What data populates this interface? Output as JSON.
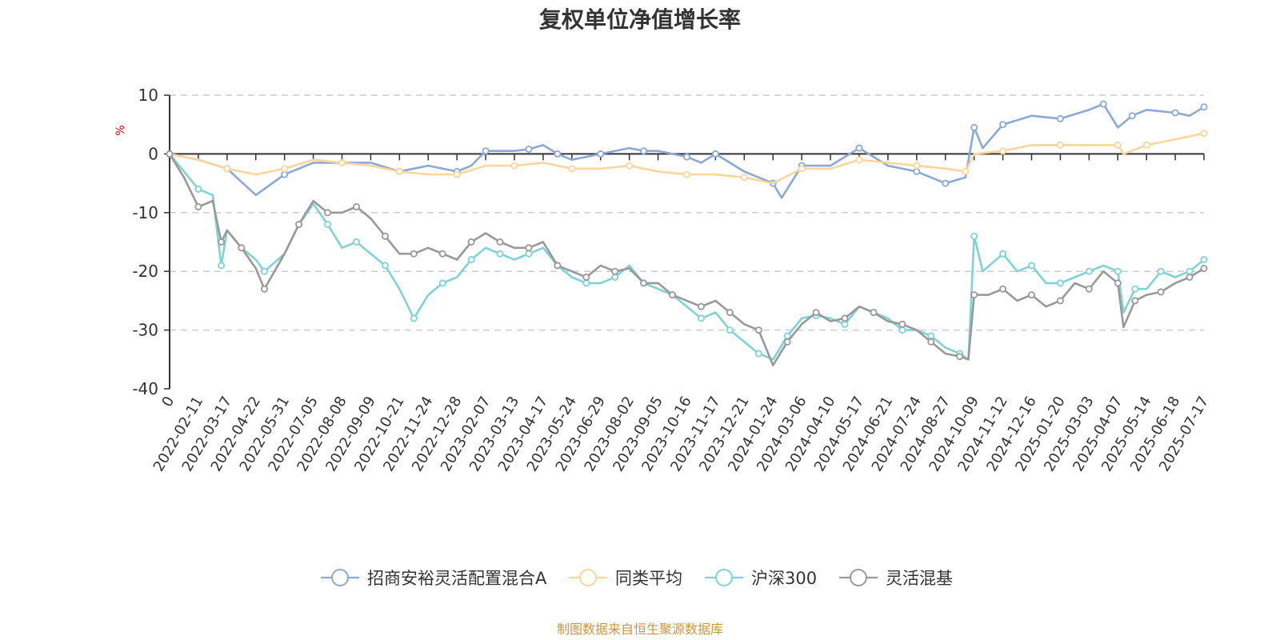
{
  "chart_data": {
    "type": "line",
    "title": "复权单位净值增长率",
    "ylabel": "%",
    "ylim": [
      -40,
      10
    ],
    "yticks": [
      10,
      0,
      -10,
      -20,
      -30,
      -40
    ],
    "grid": true,
    "legend_position": "bottom",
    "x_tick_labels": [
      "0",
      "2022-02-11",
      "2022-03-17",
      "2022-04-22",
      "2022-05-31",
      "2022-07-05",
      "2022-08-08",
      "2022-09-09",
      "2022-10-21",
      "2022-11-24",
      "2022-12-28",
      "2023-02-07",
      "2023-03-13",
      "2023-04-17",
      "2023-05-24",
      "2023-06-29",
      "2023-08-02",
      "2023-09-05",
      "2023-10-16",
      "2023-11-17",
      "2023-12-21",
      "2024-01-24",
      "2024-03-06",
      "2024-04-10",
      "2024-05-17",
      "2024-06-21",
      "2024-07-24",
      "2024-08-27",
      "2024-10-09",
      "2024-11-12",
      "2024-12-16",
      "2025-01-20",
      "2025-03-03",
      "2025-04-07",
      "2025-05-14",
      "2025-06-18",
      "2025-07-17"
    ],
    "x_tick_index": [
      0,
      1,
      2,
      3,
      4,
      5,
      6,
      7,
      8,
      9,
      10,
      11,
      12,
      13,
      14,
      15,
      16,
      17,
      18,
      19,
      20,
      21,
      22,
      23,
      24,
      25,
      26,
      27,
      28,
      29,
      30,
      31,
      32,
      33,
      34,
      35,
      36
    ],
    "series": [
      {
        "name": "招商安裕灵活配置混合A",
        "color": "#8aa8d8",
        "points": [
          [
            0,
            0
          ],
          [
            1,
            -1
          ],
          [
            2,
            -2.5
          ],
          [
            3,
            -7
          ],
          [
            4,
            -3.5
          ],
          [
            5,
            -1.5
          ],
          [
            6,
            -1.5
          ],
          [
            7,
            -1.5
          ],
          [
            8,
            -3
          ],
          [
            9,
            -2
          ],
          [
            10,
            -3
          ],
          [
            10.5,
            -2
          ],
          [
            11,
            0.5
          ],
          [
            12,
            0.5
          ],
          [
            12.5,
            0.8
          ],
          [
            13,
            1.5
          ],
          [
            13.5,
            0
          ],
          [
            14,
            -1
          ],
          [
            15,
            0
          ],
          [
            16,
            1
          ],
          [
            16.5,
            0.5
          ],
          [
            17,
            0.5
          ],
          [
            18,
            -0.5
          ],
          [
            18.5,
            -1.5
          ],
          [
            19,
            0
          ],
          [
            20,
            -3
          ],
          [
            21,
            -5
          ],
          [
            21.3,
            -7.5
          ],
          [
            22,
            -2
          ],
          [
            23,
            -2
          ],
          [
            24,
            1
          ],
          [
            25,
            -2
          ],
          [
            26,
            -3
          ],
          [
            26.5,
            -4
          ],
          [
            27,
            -5
          ],
          [
            27.7,
            -4
          ],
          [
            28,
            4.5
          ],
          [
            28.3,
            1
          ],
          [
            29,
            5
          ],
          [
            30,
            6.5
          ],
          [
            31,
            6
          ],
          [
            32,
            7.5
          ],
          [
            32.5,
            8.5
          ],
          [
            33,
            4.5
          ],
          [
            33.5,
            6.5
          ],
          [
            34,
            7.5
          ],
          [
            35,
            7
          ],
          [
            35.5,
            6.5
          ],
          [
            36,
            8
          ]
        ]
      },
      {
        "name": "同类平均",
        "color": "#fad69a",
        "points": [
          [
            0,
            0
          ],
          [
            1,
            -1
          ],
          [
            2,
            -2.5
          ],
          [
            3,
            -3.5
          ],
          [
            4,
            -2.5
          ],
          [
            5,
            -1
          ],
          [
            6,
            -1.5
          ],
          [
            7,
            -2
          ],
          [
            8,
            -3
          ],
          [
            9,
            -3.5
          ],
          [
            10,
            -3.5
          ],
          [
            11,
            -2
          ],
          [
            12,
            -2
          ],
          [
            13,
            -1.5
          ],
          [
            14,
            -2.5
          ],
          [
            15,
            -2.5
          ],
          [
            16,
            -2
          ],
          [
            17,
            -3
          ],
          [
            18,
            -3.5
          ],
          [
            19,
            -3.5
          ],
          [
            20,
            -4
          ],
          [
            21,
            -5
          ],
          [
            22,
            -2.5
          ],
          [
            23,
            -2.5
          ],
          [
            24,
            -1
          ],
          [
            25,
            -1.5
          ],
          [
            26,
            -2
          ],
          [
            27,
            -2.5
          ],
          [
            27.7,
            -3
          ],
          [
            28,
            0
          ],
          [
            29,
            0.5
          ],
          [
            30,
            1.5
          ],
          [
            31,
            1.5
          ],
          [
            32,
            1.5
          ],
          [
            33,
            1.5
          ],
          [
            33.2,
            0
          ],
          [
            34,
            1.5
          ],
          [
            35,
            2.5
          ],
          [
            36,
            3.5
          ]
        ]
      },
      {
        "name": "沪深300",
        "color": "#7dd3d6",
        "points": [
          [
            0,
            0
          ],
          [
            0.5,
            -3
          ],
          [
            1,
            -6
          ],
          [
            1.5,
            -7
          ],
          [
            1.8,
            -19
          ],
          [
            2,
            -13
          ],
          [
            2.5,
            -16
          ],
          [
            3,
            -18
          ],
          [
            3.3,
            -20
          ],
          [
            4,
            -17
          ],
          [
            4.5,
            -12
          ],
          [
            5,
            -8.5
          ],
          [
            5.5,
            -12
          ],
          [
            6,
            -16
          ],
          [
            6.5,
            -15
          ],
          [
            7,
            -17
          ],
          [
            7.5,
            -19
          ],
          [
            8,
            -23
          ],
          [
            8.5,
            -28
          ],
          [
            9,
            -24
          ],
          [
            9.5,
            -22
          ],
          [
            10,
            -21
          ],
          [
            10.5,
            -18
          ],
          [
            11,
            -16
          ],
          [
            11.5,
            -17
          ],
          [
            12,
            -18
          ],
          [
            12.5,
            -17
          ],
          [
            13,
            -16
          ],
          [
            13.5,
            -19
          ],
          [
            14,
            -21
          ],
          [
            14.5,
            -22
          ],
          [
            15,
            -22
          ],
          [
            15.5,
            -21
          ],
          [
            16,
            -19
          ],
          [
            16.5,
            -22
          ],
          [
            17,
            -23
          ],
          [
            17.5,
            -24
          ],
          [
            18,
            -26
          ],
          [
            18.5,
            -28
          ],
          [
            19,
            -27
          ],
          [
            19.5,
            -30
          ],
          [
            20,
            -32
          ],
          [
            20.5,
            -34
          ],
          [
            21,
            -35
          ],
          [
            21.5,
            -31
          ],
          [
            22,
            -28
          ],
          [
            22.5,
            -27.5
          ],
          [
            23,
            -28
          ],
          [
            23.5,
            -29
          ],
          [
            24,
            -26
          ],
          [
            24.5,
            -27
          ],
          [
            25,
            -28
          ],
          [
            25.5,
            -30
          ],
          [
            26,
            -30
          ],
          [
            26.5,
            -31
          ],
          [
            27,
            -33
          ],
          [
            27.5,
            -34
          ],
          [
            27.8,
            -35
          ],
          [
            28,
            -14
          ],
          [
            28.3,
            -20
          ],
          [
            29,
            -17
          ],
          [
            29.5,
            -20
          ],
          [
            30,
            -19
          ],
          [
            30.5,
            -22
          ],
          [
            31,
            -22
          ],
          [
            31.5,
            -21
          ],
          [
            32,
            -20
          ],
          [
            32.5,
            -19
          ],
          [
            33,
            -20
          ],
          [
            33.2,
            -27
          ],
          [
            33.6,
            -23
          ],
          [
            34,
            -23
          ],
          [
            34.5,
            -20
          ],
          [
            35,
            -21
          ],
          [
            35.5,
            -20
          ],
          [
            36,
            -18
          ]
        ]
      },
      {
        "name": "灵活混基",
        "color": "#999999",
        "points": [
          [
            0,
            0
          ],
          [
            0.5,
            -4
          ],
          [
            1,
            -9
          ],
          [
            1.5,
            -8
          ],
          [
            1.8,
            -15
          ],
          [
            2,
            -13
          ],
          [
            2.5,
            -16
          ],
          [
            3,
            -19.5
          ],
          [
            3.3,
            -23
          ],
          [
            4,
            -17
          ],
          [
            4.5,
            -12
          ],
          [
            5,
            -8
          ],
          [
            5.5,
            -10
          ],
          [
            6,
            -10
          ],
          [
            6.5,
            -9
          ],
          [
            7,
            -11
          ],
          [
            7.5,
            -14
          ],
          [
            8,
            -17
          ],
          [
            8.5,
            -17
          ],
          [
            9,
            -16
          ],
          [
            9.5,
            -17
          ],
          [
            10,
            -18
          ],
          [
            10.5,
            -15
          ],
          [
            11,
            -13.5
          ],
          [
            11.5,
            -15
          ],
          [
            12,
            -16
          ],
          [
            12.5,
            -16
          ],
          [
            13,
            -15
          ],
          [
            13.5,
            -19
          ],
          [
            14,
            -20
          ],
          [
            14.5,
            -21
          ],
          [
            15,
            -19
          ],
          [
            15.5,
            -20
          ],
          [
            16,
            -19.5
          ],
          [
            16.5,
            -22
          ],
          [
            17,
            -22
          ],
          [
            17.5,
            -24
          ],
          [
            18,
            -25
          ],
          [
            18.5,
            -26
          ],
          [
            19,
            -25
          ],
          [
            19.5,
            -27
          ],
          [
            20,
            -29
          ],
          [
            20.5,
            -30
          ],
          [
            21,
            -36
          ],
          [
            21.5,
            -32
          ],
          [
            22,
            -29
          ],
          [
            22.5,
            -27
          ],
          [
            23,
            -28.5
          ],
          [
            23.5,
            -28
          ],
          [
            24,
            -26
          ],
          [
            24.5,
            -27
          ],
          [
            25,
            -28.5
          ],
          [
            25.5,
            -29
          ],
          [
            26,
            -30
          ],
          [
            26.5,
            -32
          ],
          [
            27,
            -34
          ],
          [
            27.5,
            -34.5
          ],
          [
            27.8,
            -35
          ],
          [
            28,
            -24
          ],
          [
            28.5,
            -24
          ],
          [
            29,
            -23
          ],
          [
            29.5,
            -25
          ],
          [
            30,
            -24
          ],
          [
            30.5,
            -26
          ],
          [
            31,
            -25
          ],
          [
            31.5,
            -22
          ],
          [
            32,
            -23
          ],
          [
            32.5,
            -20
          ],
          [
            33,
            -22
          ],
          [
            33.2,
            -29.5
          ],
          [
            33.6,
            -25
          ],
          [
            34,
            -24
          ],
          [
            34.5,
            -23.5
          ],
          [
            35,
            -22
          ],
          [
            35.5,
            -21
          ],
          [
            36,
            -19.5
          ]
        ]
      }
    ]
  },
  "source_note": "制图数据来自恒生聚源数据库"
}
